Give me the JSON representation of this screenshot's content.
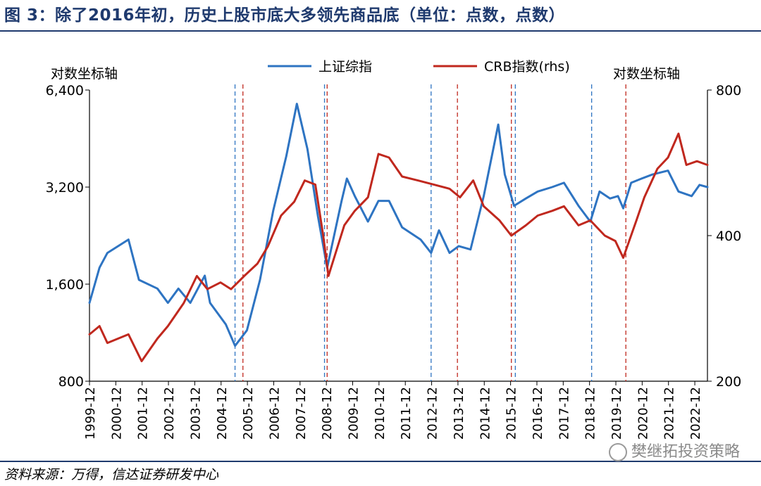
{
  "title": "图 3：除了2016年初，历史上股市底大多领先商品底（单位：点数，点数）",
  "source": "资料来源：万得，信达证券研发中心",
  "watermark": "樊继拓投资策略",
  "colors": {
    "sse": "#2e74c2",
    "crb": "#c0281e",
    "title": "#1f3a6e"
  },
  "chart_data": {
    "type": "line",
    "title": "",
    "left_axis": {
      "label": "对数坐标轴",
      "scale": "log",
      "ticks": [
        800,
        1600,
        3200,
        6400
      ],
      "tick_labels": [
        "800",
        "1,600",
        "3,200",
        "6,400"
      ],
      "range": [
        800,
        6400
      ]
    },
    "right_axis": {
      "label": "对数坐标轴",
      "scale": "log",
      "ticks": [
        200,
        400,
        800
      ],
      "tick_labels": [
        "200",
        "400",
        "800"
      ],
      "range": [
        200,
        800
      ]
    },
    "x_tick_labels": [
      "1999-12",
      "2000-12",
      "2001-12",
      "2002-12",
      "2003-12",
      "2004-12",
      "2005-12",
      "2006-12",
      "2007-12",
      "2008-12",
      "2009-12",
      "2010-12",
      "2011-12",
      "2012-12",
      "2013-12",
      "2014-12",
      "2015-12",
      "2016-12",
      "2017-12",
      "2018-12",
      "2019-12",
      "2020-12",
      "2021-12",
      "2022-12"
    ],
    "x_range": [
      1999.92,
      2023.4
    ],
    "legend": {
      "placement": "top-center"
    },
    "series": [
      {
        "name": "上证综指",
        "axis": "left",
        "color": "#2e74c2",
        "points": [
          [
            1999.92,
            1400
          ],
          [
            2000.3,
            1800
          ],
          [
            2000.6,
            2000
          ],
          [
            2001.4,
            2200
          ],
          [
            2001.8,
            1650
          ],
          [
            2002.5,
            1550
          ],
          [
            2002.9,
            1400
          ],
          [
            2003.3,
            1550
          ],
          [
            2003.75,
            1400
          ],
          [
            2004.3,
            1700
          ],
          [
            2004.5,
            1400
          ],
          [
            2005.1,
            1200
          ],
          [
            2005.45,
            1030
          ],
          [
            2005.9,
            1150
          ],
          [
            2006.4,
            1650
          ],
          [
            2006.9,
            2700
          ],
          [
            2007.4,
            4000
          ],
          [
            2007.8,
            5800
          ],
          [
            2008.2,
            4200
          ],
          [
            2008.6,
            2600
          ],
          [
            2008.95,
            1800
          ],
          [
            2009.5,
            2900
          ],
          [
            2009.7,
            3400
          ],
          [
            2010.0,
            3000
          ],
          [
            2010.5,
            2500
          ],
          [
            2010.9,
            2900
          ],
          [
            2011.3,
            2900
          ],
          [
            2011.8,
            2400
          ],
          [
            2012.5,
            2200
          ],
          [
            2012.9,
            2000
          ],
          [
            2013.2,
            2350
          ],
          [
            2013.6,
            2000
          ],
          [
            2013.95,
            2100
          ],
          [
            2014.4,
            2050
          ],
          [
            2014.9,
            3000
          ],
          [
            2015.45,
            5000
          ],
          [
            2015.7,
            3500
          ],
          [
            2016.05,
            2800
          ],
          [
            2016.5,
            2950
          ],
          [
            2016.95,
            3100
          ],
          [
            2017.5,
            3200
          ],
          [
            2017.95,
            3300
          ],
          [
            2018.5,
            2800
          ],
          [
            2018.95,
            2500
          ],
          [
            2019.3,
            3100
          ],
          [
            2019.7,
            2950
          ],
          [
            2020.0,
            3000
          ],
          [
            2020.2,
            2750
          ],
          [
            2020.5,
            3300
          ],
          [
            2020.9,
            3400
          ],
          [
            2021.3,
            3500
          ],
          [
            2021.9,
            3600
          ],
          [
            2022.3,
            3100
          ],
          [
            2022.8,
            3000
          ],
          [
            2023.1,
            3250
          ],
          [
            2023.4,
            3200
          ]
        ]
      },
      {
        "name": "CRB指数(rhs)",
        "axis": "right",
        "color": "#c0281e",
        "points": [
          [
            1999.92,
            250
          ],
          [
            2000.3,
            260
          ],
          [
            2000.6,
            240
          ],
          [
            2001.4,
            250
          ],
          [
            2001.9,
            220
          ],
          [
            2002.5,
            245
          ],
          [
            2002.9,
            260
          ],
          [
            2003.5,
            290
          ],
          [
            2004.0,
            330
          ],
          [
            2004.4,
            310
          ],
          [
            2004.9,
            320
          ],
          [
            2005.3,
            310
          ],
          [
            2005.8,
            330
          ],
          [
            2006.3,
            350
          ],
          [
            2006.7,
            380
          ],
          [
            2007.2,
            440
          ],
          [
            2007.7,
            470
          ],
          [
            2008.1,
            520
          ],
          [
            2008.5,
            510
          ],
          [
            2008.8,
            400
          ],
          [
            2009.0,
            330
          ],
          [
            2009.6,
            420
          ],
          [
            2010.0,
            450
          ],
          [
            2010.5,
            480
          ],
          [
            2010.9,
            590
          ],
          [
            2011.3,
            580
          ],
          [
            2011.8,
            530
          ],
          [
            2012.4,
            520
          ],
          [
            2013.0,
            510
          ],
          [
            2013.6,
            500
          ],
          [
            2014.0,
            480
          ],
          [
            2014.5,
            520
          ],
          [
            2014.9,
            460
          ],
          [
            2015.5,
            430
          ],
          [
            2015.95,
            400
          ],
          [
            2016.5,
            420
          ],
          [
            2016.95,
            440
          ],
          [
            2017.5,
            450
          ],
          [
            2017.95,
            460
          ],
          [
            2018.5,
            420
          ],
          [
            2018.95,
            430
          ],
          [
            2019.5,
            400
          ],
          [
            2019.9,
            390
          ],
          [
            2020.2,
            360
          ],
          [
            2020.7,
            430
          ],
          [
            2021.0,
            480
          ],
          [
            2021.5,
            550
          ],
          [
            2021.9,
            580
          ],
          [
            2022.3,
            650
          ],
          [
            2022.6,
            560
          ],
          [
            2023.0,
            570
          ],
          [
            2023.4,
            560
          ]
        ]
      }
    ],
    "vlines": [
      {
        "x": 2005.45,
        "series": "上证综指"
      },
      {
        "x": 2005.75,
        "series": "CRB指数(rhs)"
      },
      {
        "x": 2008.85,
        "series": "上证综指"
      },
      {
        "x": 2008.95,
        "series": "CRB指数(rhs)"
      },
      {
        "x": 2012.9,
        "series": "上证综指"
      },
      {
        "x": 2013.9,
        "series": "CRB指数(rhs)"
      },
      {
        "x": 2015.95,
        "series": "CRB指数(rhs)"
      },
      {
        "x": 2016.1,
        "series": "上证综指"
      },
      {
        "x": 2019.0,
        "series": "上证综指"
      },
      {
        "x": 2020.3,
        "series": "CRB指数(rhs)"
      }
    ]
  }
}
